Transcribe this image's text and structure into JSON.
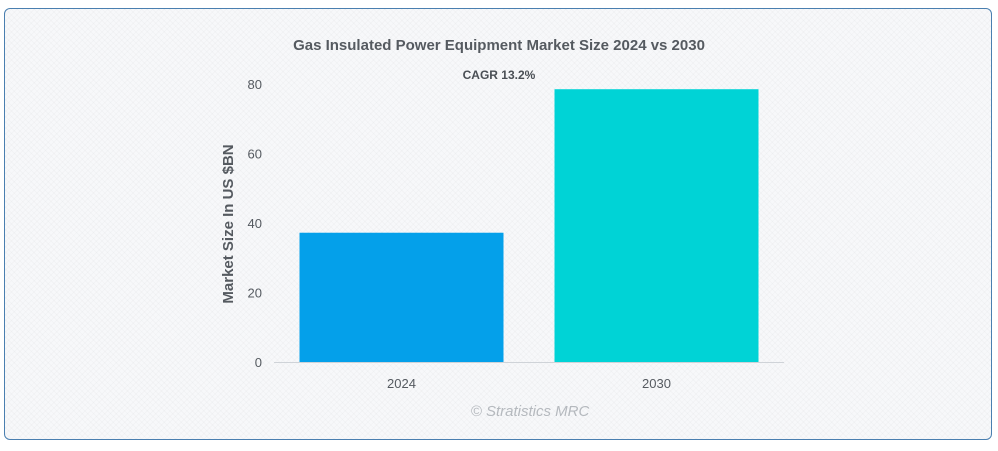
{
  "chart_data": {
    "type": "bar",
    "title": "Gas Insulated Power Equipment Market Size 2024 vs 2030",
    "annotation": "CAGR 13.2%",
    "categories": [
      "2024",
      "2030"
    ],
    "values": [
      37.2,
      78.5
    ],
    "colors": [
      "#04a0ea",
      "#00d3d6"
    ],
    "xlabel": "",
    "ylabel": "Market Size In US $BN",
    "ylim": [
      0,
      80
    ],
    "yticks": [
      0,
      20,
      40,
      60,
      80
    ],
    "grid": false,
    "legend": "none"
  },
  "credit": "© Stratistics MRC"
}
